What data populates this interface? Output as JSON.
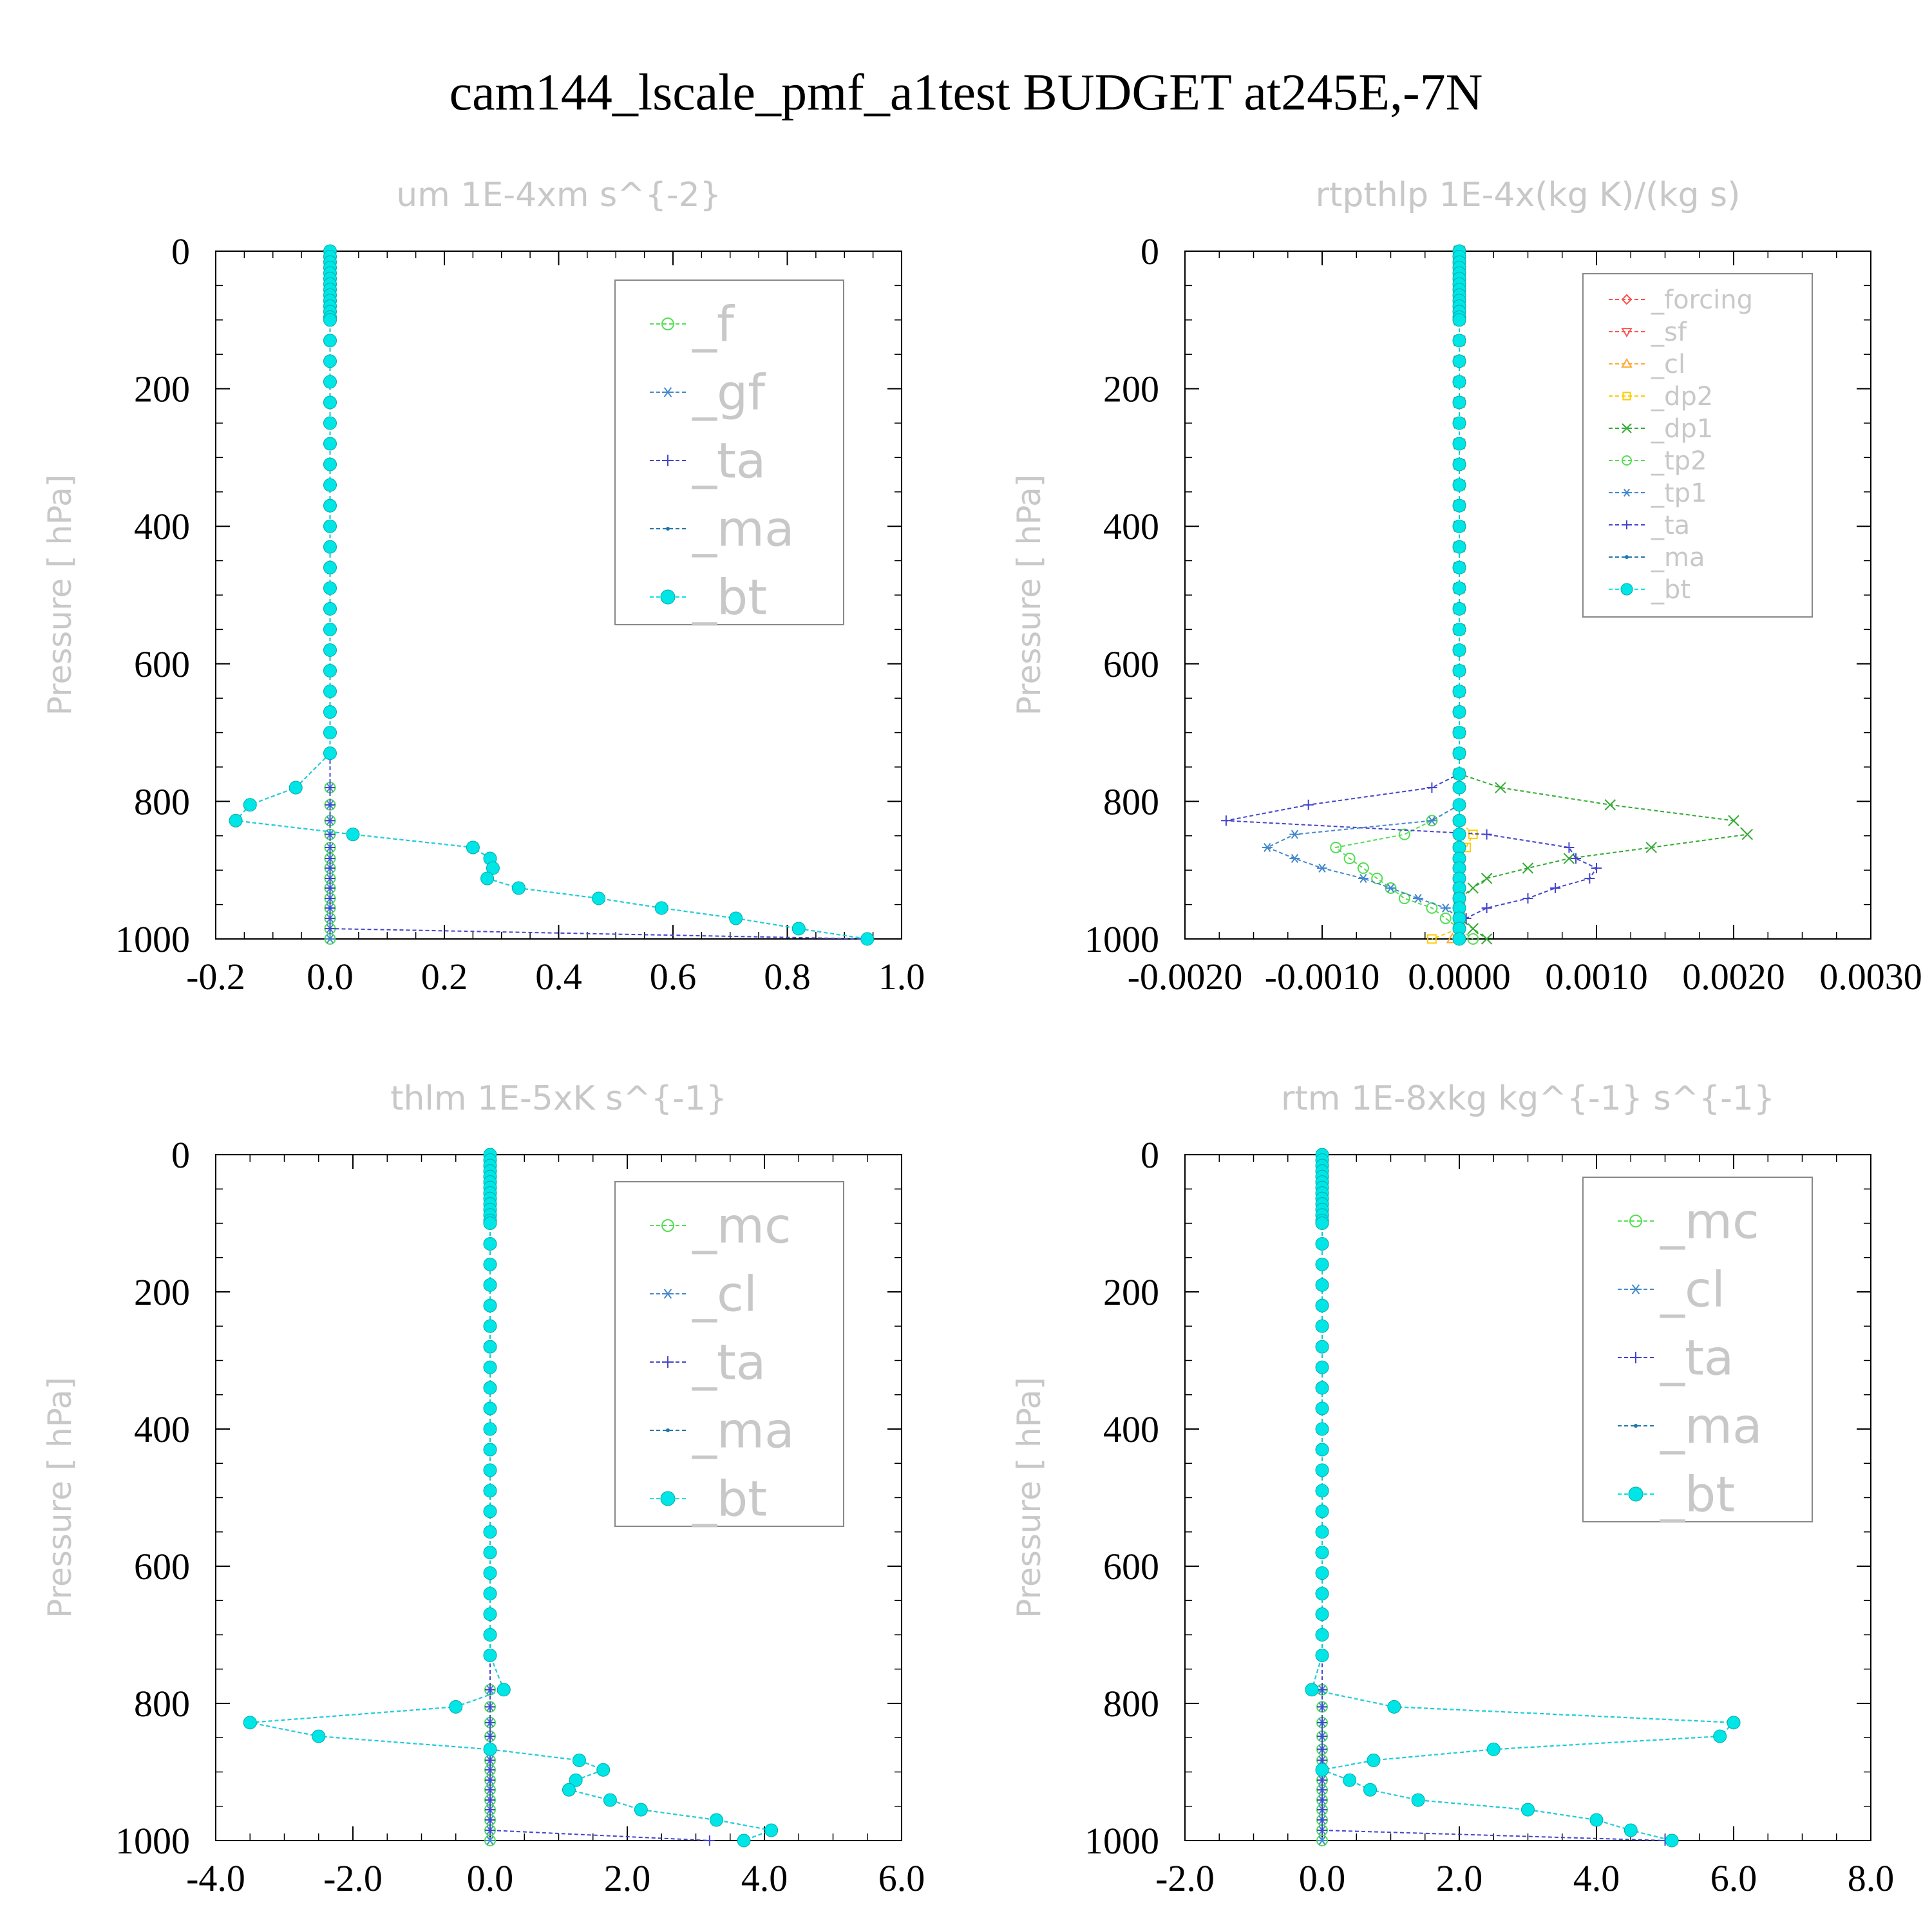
{
  "title": "cam144_lscale_pmf_a1test  BUDGET at245E,-7N",
  "colors": {
    "forcing": "#ff4d4d",
    "sf": "#ff5555",
    "cl_orange": "#ffaa33",
    "dp2": "#ffcc00",
    "dp1": "#33aa33",
    "green": "#55dd55",
    "blue": "#4488cc",
    "navy": "#4444cc",
    "ma": "#2277aa",
    "bt": "#00e5e5"
  },
  "chart_data": [
    {
      "type": "line",
      "title": "um   1E-4xm s^{-2}",
      "ylabel": "Pressure [ hPa]",
      "xlim": [
        -0.2,
        1.0
      ],
      "ylim": [
        1000,
        0
      ],
      "xticks": [
        "-0.2",
        "0.0",
        "0.2",
        "0.4",
        "0.6",
        "0.8",
        "1.0"
      ],
      "yticks": [
        "0",
        "200",
        "400",
        "600",
        "800",
        "1000"
      ],
      "grid": false,
      "legend_position": "top-right",
      "legend_entries": [
        "_f",
        "_gf",
        "_ta",
        "_ma",
        "_bt"
      ],
      "profile_pressures": [
        780,
        805,
        828,
        848,
        867,
        883,
        897,
        912,
        926,
        941,
        955,
        970,
        985,
        1000
      ],
      "series": [
        {
          "name": "_f",
          "marker": "circle",
          "color": "green",
          "values": [
            0,
            0,
            0,
            0,
            0,
            0,
            0,
            0,
            0,
            0,
            0,
            0,
            0,
            0
          ]
        },
        {
          "name": "_gf",
          "marker": "asterisk",
          "color": "blue",
          "values": [
            0,
            0,
            0,
            0,
            0,
            0,
            0,
            0,
            0,
            0,
            0,
            0,
            0,
            0
          ]
        },
        {
          "name": "_ta",
          "marker": "plus",
          "color": "navy",
          "values": [
            0,
            0,
            0,
            0,
            0,
            0,
            0,
            0,
            0,
            0,
            0,
            0,
            0,
            0.94
          ]
        },
        {
          "name": "_ma",
          "marker": "dot",
          "color": "ma",
          "values": [
            -0.06,
            -0.14,
            -0.165,
            0.04,
            0.25,
            0.28,
            0.285,
            0.275,
            0.33,
            0.47,
            0.58,
            0.71,
            0.82,
            0.94
          ]
        },
        {
          "name": "_bt",
          "marker": "filled-circle",
          "color": "bt",
          "values": [
            -0.06,
            -0.14,
            -0.165,
            0.04,
            0.25,
            0.28,
            0.285,
            0.275,
            0.33,
            0.47,
            0.58,
            0.71,
            0.82,
            0.94
          ]
        }
      ]
    },
    {
      "type": "line",
      "title": "rtpthlp   1E-4x(kg K)/(kg s)",
      "ylabel": "Pressure [ hPa]",
      "xlim": [
        -0.002,
        0.003
      ],
      "ylim": [
        1000,
        0
      ],
      "xticks": [
        "-0.0020",
        "-0.0010",
        "0.0000",
        "0.0010",
        "0.0020",
        "0.0030"
      ],
      "yticks": [
        "0",
        "200",
        "400",
        "600",
        "800",
        "1000"
      ],
      "grid": false,
      "legend_position": "top-right",
      "legend_entries": [
        "_forcing",
        "_sf",
        "_cl",
        "_dp2",
        "_dp1",
        "_tp2",
        "_tp1",
        "_ta",
        "_ma",
        "_bt"
      ],
      "profile_pressures": [
        760,
        780,
        805,
        828,
        848,
        867,
        883,
        897,
        912,
        926,
        941,
        955,
        970,
        985,
        1000
      ],
      "series": [
        {
          "name": "_forcing",
          "marker": "diamond",
          "color": "forcing",
          "values": [
            0,
            0,
            0,
            0,
            0,
            0,
            0,
            0,
            0,
            0,
            0,
            0,
            0,
            0,
            0
          ]
        },
        {
          "name": "_sf",
          "marker": "triangle-down",
          "color": "sf",
          "values": [
            0,
            0,
            0,
            0,
            0,
            0,
            0,
            0,
            0,
            0,
            0,
            0,
            0,
            0,
            0
          ]
        },
        {
          "name": "_cl",
          "marker": "triangle-up",
          "color": "cl_orange",
          "values": [
            0,
            0,
            0,
            0,
            0,
            0,
            0,
            0,
            0,
            0,
            0,
            0,
            0,
            0,
            -5e-05
          ]
        },
        {
          "name": "_dp2",
          "marker": "square",
          "color": "dp2",
          "values": [
            0,
            0,
            0,
            0,
            0.0001,
            5e-05,
            0,
            0,
            0,
            0,
            0,
            0,
            0,
            0,
            -0.0002
          ]
        },
        {
          "name": "_dp1",
          "marker": "cross",
          "color": "dp1",
          "values": [
            0,
            0.0003,
            0.0011,
            0.002,
            0.0021,
            0.0014,
            0.0008,
            0.0005,
            0.0002,
            0.0001,
            0,
            0,
            0,
            0.0001,
            0.0002
          ]
        },
        {
          "name": "_tp2",
          "marker": "circle",
          "color": "green",
          "values": [
            0,
            0,
            0,
            -0.0002,
            -0.0004,
            -0.0009,
            -0.0008,
            -0.0007,
            -0.0006,
            -0.0005,
            -0.0004,
            -0.0002,
            -0.0001,
            0,
            0.0001
          ]
        },
        {
          "name": "_tp1",
          "marker": "asterisk",
          "color": "blue",
          "values": [
            0,
            0,
            0,
            -0.0002,
            -0.0012,
            -0.0014,
            -0.0012,
            -0.001,
            -0.0007,
            -0.0005,
            -0.0003,
            -0.0001,
            0,
            0,
            0
          ]
        },
        {
          "name": "_ta",
          "marker": "plus",
          "color": "navy",
          "values": [
            0,
            -0.0002,
            -0.0011,
            -0.0017,
            0.0002,
            0.0008,
            0.00085,
            0.001,
            0.00095,
            0.0007,
            0.0005,
            0.0002,
            5e-05,
            0,
            0
          ]
        },
        {
          "name": "_ma",
          "marker": "dot",
          "color": "ma",
          "values": [
            0,
            0,
            0,
            0,
            0,
            0,
            0,
            0,
            0,
            0,
            0,
            0,
            0,
            0,
            0
          ]
        },
        {
          "name": "_bt",
          "marker": "filled-circle",
          "color": "bt",
          "values": [
            0,
            0,
            0,
            0,
            0,
            0,
            0,
            0,
            0,
            0,
            0,
            0,
            0,
            0,
            0
          ]
        }
      ]
    },
    {
      "type": "line",
      "title": "thlm   1E-5xK s^{-1}",
      "ylabel": "Pressure [ hPa]",
      "xlim": [
        -4.0,
        6.0
      ],
      "ylim": [
        1000,
        0
      ],
      "xticks": [
        "-4.0",
        "-2.0",
        "0.0",
        "2.0",
        "4.0",
        "6.0"
      ],
      "yticks": [
        "0",
        "200",
        "400",
        "600",
        "800",
        "1000"
      ],
      "grid": false,
      "legend_position": "top-right",
      "legend_entries": [
        "_mc",
        "_cl",
        "_ta",
        "_ma",
        "_bt"
      ],
      "profile_pressures": [
        780,
        805,
        828,
        848,
        867,
        883,
        897,
        912,
        926,
        941,
        955,
        970,
        985,
        1000
      ],
      "series": [
        {
          "name": "_mc",
          "marker": "circle",
          "color": "green",
          "values": [
            0,
            0,
            0,
            0,
            0,
            0,
            0,
            0,
            0,
            0,
            0,
            0,
            0,
            0
          ]
        },
        {
          "name": "_cl",
          "marker": "asterisk",
          "color": "blue",
          "values": [
            0,
            0,
            0,
            0,
            0,
            0,
            0,
            0,
            0,
            0,
            0,
            0,
            0,
            0
          ]
        },
        {
          "name": "_ta",
          "marker": "plus",
          "color": "navy",
          "values": [
            0,
            0,
            0,
            0,
            0,
            0,
            0,
            0,
            0,
            0,
            0,
            0,
            0,
            3.2
          ]
        },
        {
          "name": "_ma",
          "marker": "dot",
          "color": "ma",
          "values": [
            0.2,
            -0.5,
            -3.5,
            -2.5,
            0,
            1.3,
            1.65,
            1.25,
            1.15,
            1.75,
            2.2,
            3.3,
            4.1,
            3.7
          ]
        },
        {
          "name": "_bt",
          "marker": "filled-circle",
          "color": "bt",
          "values": [
            0.2,
            -0.5,
            -3.5,
            -2.5,
            0,
            1.3,
            1.65,
            1.25,
            1.15,
            1.75,
            2.2,
            3.3,
            4.1,
            3.7
          ]
        }
      ]
    },
    {
      "type": "line",
      "title": "rtm   1E-8xkg kg^{-1} s^{-1}",
      "ylabel": "Pressure [ hPa]",
      "xlim": [
        -2.0,
        8.0
      ],
      "ylim": [
        1000,
        0
      ],
      "xticks": [
        "-2.0",
        "0.0",
        "2.0",
        "4.0",
        "6.0",
        "8.0"
      ],
      "yticks": [
        "0",
        "200",
        "400",
        "600",
        "800",
        "1000"
      ],
      "grid": false,
      "legend_position": "top-right",
      "legend_entries": [
        "_mc",
        "_cl",
        "_ta",
        "_ma",
        "_bt"
      ],
      "profile_pressures": [
        780,
        805,
        828,
        848,
        867,
        883,
        897,
        912,
        926,
        941,
        955,
        970,
        985,
        1000
      ],
      "series": [
        {
          "name": "_mc",
          "marker": "circle",
          "color": "green",
          "values": [
            0,
            0,
            0,
            0,
            0,
            0,
            0,
            0,
            0,
            0,
            0,
            0,
            0,
            0
          ]
        },
        {
          "name": "_cl",
          "marker": "asterisk",
          "color": "blue",
          "values": [
            0,
            0,
            0,
            0,
            0,
            0,
            0,
            0,
            0,
            0,
            0,
            0,
            0,
            0
          ]
        },
        {
          "name": "_ta",
          "marker": "plus",
          "color": "navy",
          "values": [
            0,
            0,
            0,
            0,
            0,
            0,
            0,
            0,
            0,
            0,
            0,
            0,
            0,
            5.0
          ]
        },
        {
          "name": "_ma",
          "marker": "dot",
          "color": "ma",
          "values": [
            -0.15,
            1.05,
            6.0,
            5.8,
            2.5,
            0.75,
            0,
            0.4,
            0.7,
            1.4,
            3.0,
            4.0,
            4.5,
            5.1
          ]
        },
        {
          "name": "_bt",
          "marker": "filled-circle",
          "color": "bt",
          "values": [
            -0.15,
            1.05,
            6.0,
            5.8,
            2.5,
            0.75,
            0,
            0.4,
            0.7,
            1.4,
            3.0,
            4.0,
            4.5,
            5.1
          ]
        }
      ]
    }
  ]
}
